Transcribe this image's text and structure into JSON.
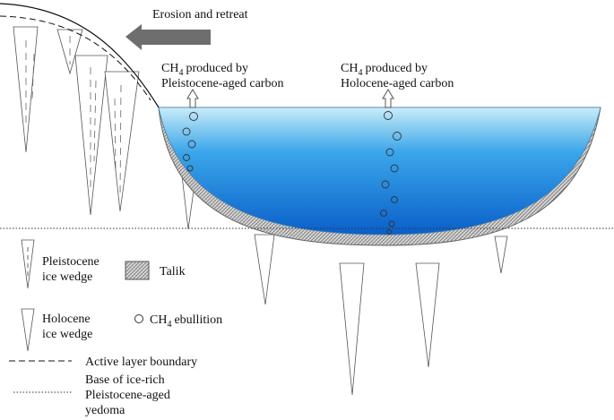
{
  "arrow_label": "Erosion and retreat",
  "sources": [
    {
      "formula": "CH",
      "subscript": "4",
      "lines": [
        "produced by",
        "Pleistocene-aged carbon"
      ]
    },
    {
      "formula": "CH",
      "subscript": "4",
      "lines": [
        "produced by",
        "Holocene-aged carbon"
      ]
    }
  ],
  "legend": {
    "pleistocene_wedge": [
      "Pleistocene",
      "ice wedge"
    ],
    "talik": "Talik",
    "holocene_wedge": [
      "Holocene",
      "ice wedge"
    ],
    "ebullition": {
      "formula": "CH",
      "subscript": "4",
      "text": "ebullition"
    },
    "active_layer": "Active layer boundary",
    "yedoma_base": [
      "Base of ice-rich",
      "Pleistocene-aged",
      "yedoma"
    ]
  }
}
